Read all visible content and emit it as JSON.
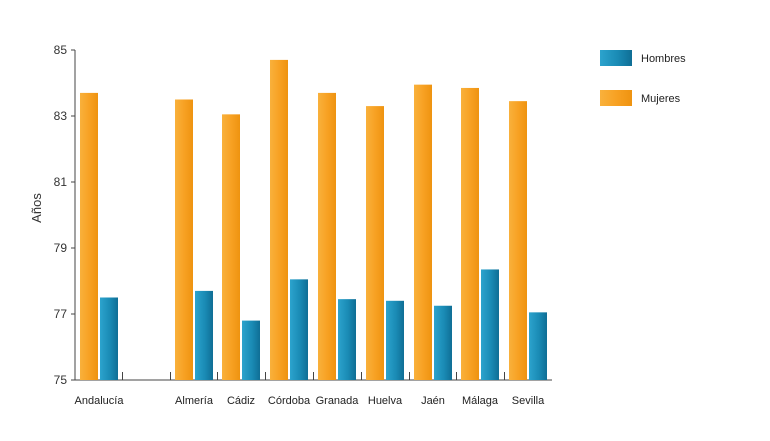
{
  "chart_data": {
    "type": "bar",
    "title": "",
    "xlabel": "",
    "ylabel": "Años",
    "ylim": [
      75,
      85
    ],
    "yticks": [
      75,
      77,
      79,
      81,
      83,
      85
    ],
    "grid": false,
    "legend_position": "top-right",
    "categories": [
      "Andalucía",
      "",
      "Almería",
      "Cádiz",
      "Córdoba",
      "Granada",
      "Huelva",
      "Jaén",
      "Málaga",
      "Sevilla"
    ],
    "series": [
      {
        "name": "Mujeres",
        "color": "#F7A021",
        "values": [
          83.7,
          null,
          83.5,
          83.05,
          84.7,
          83.7,
          83.3,
          83.95,
          83.85,
          83.45
        ]
      },
      {
        "name": "Hombres",
        "color": "#1A8BB5",
        "values": [
          77.5,
          null,
          77.7,
          76.8,
          78.05,
          77.45,
          77.4,
          77.25,
          78.35,
          77.05
        ]
      }
    ]
  }
}
